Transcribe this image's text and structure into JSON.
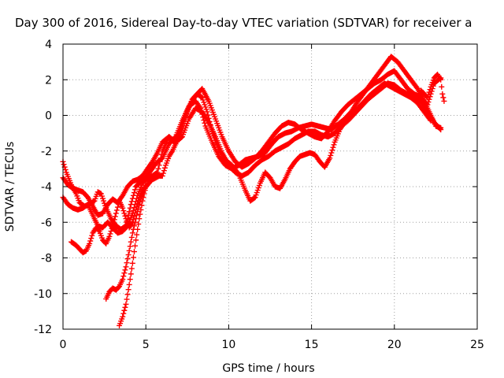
{
  "chart_data": {
    "type": "scatter",
    "title": "Day 300 of 2016, Sidereal Day-to-day VTEC variation (SDTVAR) for receiver a",
    "xlabel": "GPS time / hours",
    "ylabel": "SDTVAR / TECUs",
    "xlim": [
      0,
      25
    ],
    "ylim": [
      -12,
      4
    ],
    "x_ticks": [
      0,
      5,
      10,
      15,
      20,
      25
    ],
    "y_ticks": [
      -12,
      -10,
      -8,
      -6,
      -4,
      -2,
      0,
      2,
      4
    ],
    "grid": true,
    "marker": "plus",
    "colors": {
      "series": "#ff0000",
      "grid": "#a0a0a0",
      "axes": "#000000"
    },
    "series": [
      {
        "x": [
          0.0,
          0.2,
          0.5,
          0.8,
          1.0,
          1.3,
          1.6,
          1.9,
          2.1,
          2.3,
          2.6,
          2.9,
          3.2,
          3.5,
          3.8,
          4.1,
          4.4,
          4.7,
          5.0,
          5.3,
          5.6,
          6.0,
          6.4,
          6.8,
          7.2,
          7.6,
          8.0,
          8.3,
          8.6,
          9.0,
          9.4,
          9.8,
          10.2,
          10.6,
          11.0,
          11.4,
          11.8,
          12.2,
          12.6,
          13.0,
          13.4,
          13.8,
          14.2,
          14.6,
          15.0,
          15.4,
          15.8,
          16.2,
          16.6,
          17.0,
          17.4,
          17.8,
          18.2,
          18.6,
          19.0,
          19.4,
          19.8,
          20.2,
          20.6,
          21.0,
          21.4,
          21.8,
          22.2,
          22.5,
          22.8
        ],
        "y": [
          -2.6,
          -3.2,
          -3.9,
          -4.4,
          -4.9,
          -5.1,
          -5.0,
          -4.8,
          -4.3,
          -4.4,
          -5.2,
          -5.8,
          -6.2,
          -6.4,
          -6.2,
          -5.0,
          -4.0,
          -3.7,
          -3.5,
          -3.1,
          -2.7,
          -2.4,
          -1.6,
          -1.2,
          -0.3,
          0.5,
          0.8,
          0.4,
          -0.6,
          -1.5,
          -2.3,
          -2.8,
          -3.0,
          -2.8,
          -2.5,
          -2.4,
          -2.3,
          -2.1,
          -1.6,
          -1.2,
          -1.0,
          -0.9,
          -0.7,
          -0.6,
          -0.5,
          -0.6,
          -0.7,
          -0.8,
          -0.5,
          -0.2,
          0.2,
          0.8,
          1.3,
          1.8,
          2.3,
          2.8,
          3.3,
          3.0,
          2.5,
          2.0,
          1.5,
          0.8,
          0.0,
          -0.6,
          -0.7
        ]
      },
      {
        "x": [
          0.0,
          0.3,
          0.6,
          0.9,
          1.2,
          1.5,
          1.8,
          2.1,
          2.4,
          2.7,
          3.0,
          3.3,
          3.6,
          3.9,
          4.2,
          4.5,
          4.8,
          5.1,
          5.4,
          5.7,
          6.0,
          6.4,
          6.8,
          7.2,
          7.6,
          8.0,
          8.4,
          8.8,
          9.2,
          9.6,
          10.0,
          10.4,
          10.8,
          11.2,
          11.6,
          12.0,
          12.4,
          12.8,
          13.2,
          13.6,
          14.0,
          14.4,
          14.8,
          15.2,
          15.6,
          16.0,
          16.4,
          16.8,
          17.2,
          17.6,
          18.0,
          18.4,
          18.8,
          19.2,
          19.6,
          20.0,
          20.4,
          20.8,
          21.2,
          21.6,
          22.0,
          22.4,
          22.8
        ],
        "y": [
          -3.5,
          -3.9,
          -4.1,
          -4.2,
          -4.3,
          -4.6,
          -5.1,
          -5.6,
          -5.5,
          -5.0,
          -4.7,
          -4.9,
          -4.5,
          -4.0,
          -3.7,
          -3.6,
          -3.4,
          -3.0,
          -2.6,
          -2.1,
          -1.5,
          -1.2,
          -1.6,
          -0.5,
          0.5,
          1.1,
          1.5,
          0.8,
          -0.2,
          -1.2,
          -2.0,
          -2.6,
          -2.9,
          -2.7,
          -2.4,
          -2.0,
          -1.5,
          -1.0,
          -0.6,
          -0.4,
          -0.5,
          -0.8,
          -1.0,
          -1.2,
          -1.3,
          -0.9,
          -0.3,
          0.2,
          0.6,
          0.9,
          1.2,
          1.5,
          1.8,
          2.0,
          2.3,
          2.5,
          2.0,
          1.5,
          1.2,
          1.0,
          0.6,
          1.8,
          2.1
        ]
      },
      {
        "x": [
          0.0,
          0.3,
          0.6,
          0.9,
          1.2,
          1.5,
          1.8,
          2.1,
          2.4,
          2.7,
          3.0,
          3.3,
          3.6,
          3.9,
          4.2,
          4.5,
          4.8,
          5.1,
          5.4,
          5.7,
          6.0,
          6.4,
          6.8,
          7.2,
          7.6,
          8.0,
          8.4,
          8.8,
          9.2,
          9.6,
          10.0,
          10.4,
          10.8,
          11.2,
          11.6,
          12.0,
          12.4,
          12.8,
          13.2,
          13.6,
          14.0,
          14.4,
          14.8,
          15.2,
          15.6,
          16.0,
          16.4,
          16.8,
          17.2,
          17.6,
          18.0,
          18.4,
          18.8,
          19.2,
          19.6,
          20.0,
          20.4,
          20.8,
          21.2,
          21.6,
          22.0,
          22.4,
          22.8
        ],
        "y": [
          -4.6,
          -5.0,
          -5.2,
          -5.3,
          -5.2,
          -5.0,
          -5.6,
          -6.2,
          -6.3,
          -6.0,
          -6.3,
          -6.6,
          -6.5,
          -6.2,
          -5.5,
          -4.5,
          -3.8,
          -3.5,
          -3.4,
          -3.2,
          -2.0,
          -1.2,
          -1.5,
          -1.2,
          -0.2,
          0.4,
          0.2,
          -0.4,
          -1.2,
          -2.1,
          -2.8,
          -3.2,
          -3.4,
          -3.2,
          -2.8,
          -2.5,
          -2.3,
          -2.0,
          -1.8,
          -1.6,
          -1.3,
          -1.1,
          -0.9,
          -0.9,
          -1.1,
          -1.2,
          -1.0,
          -0.6,
          -0.3,
          0.1,
          0.5,
          0.9,
          1.2,
          1.5,
          1.8,
          1.7,
          1.4,
          1.2,
          1.0,
          0.8,
          0.2,
          -0.4,
          -0.8
        ]
      },
      {
        "x": [
          0.5,
          0.8,
          1.0,
          1.2,
          1.4,
          1.6,
          1.8,
          2.0,
          2.2,
          2.4,
          2.6,
          2.8,
          3.0,
          3.2,
          3.4,
          3.6,
          3.8,
          4.0,
          4.2,
          4.4,
          4.6,
          4.8,
          5.0,
          5.2,
          5.4,
          5.6,
          5.8,
          6.0,
          6.2,
          6.4,
          6.6,
          6.9,
          7.2,
          7.5,
          7.8,
          8.1,
          8.4,
          8.7,
          9.0,
          9.4,
          9.8,
          10.2,
          10.6,
          11.0,
          11.3,
          11.6,
          11.9,
          12.2,
          12.5,
          12.8,
          13.1,
          13.4,
          13.7,
          14.0,
          14.3,
          14.6,
          14.9,
          15.2,
          15.5,
          15.8,
          16.1,
          16.4,
          16.7,
          17.0,
          17.4,
          17.8,
          18.2,
          18.6,
          19.0,
          19.4,
          19.8,
          20.2,
          20.6,
          21.0,
          21.4,
          21.8,
          22.2
        ],
        "y": [
          -7.1,
          -7.3,
          -7.5,
          -7.7,
          -7.6,
          -7.2,
          -6.6,
          -6.3,
          -6.5,
          -7.0,
          -7.2,
          -6.8,
          -6.2,
          -5.5,
          -4.8,
          -5.2,
          -5.8,
          -6.3,
          -6.0,
          -5.3,
          -4.6,
          -4.2,
          -4.0,
          -3.7,
          -3.6,
          -3.5,
          -3.4,
          -3.4,
          -2.8,
          -2.3,
          -2.0,
          -1.4,
          -0.6,
          0.2,
          0.9,
          1.2,
          1.0,
          0.2,
          -0.9,
          -1.9,
          -2.5,
          -2.8,
          -3.3,
          -4.2,
          -4.8,
          -4.6,
          -3.8,
          -3.2,
          -3.5,
          -4.0,
          -4.1,
          -3.6,
          -3.0,
          -2.6,
          -2.3,
          -2.2,
          -2.1,
          -2.2,
          -2.6,
          -2.9,
          -2.4,
          -1.5,
          -0.8,
          -0.4,
          0.1,
          0.4,
          0.8,
          1.2,
          1.5,
          1.8,
          1.6,
          1.4,
          1.2,
          1.0,
          0.7,
          0.2,
          -0.3
        ]
      },
      {
        "x": [
          2.6,
          2.8,
          3.0,
          3.2,
          3.4,
          3.6,
          3.8,
          4.0,
          4.2,
          4.4,
          4.6,
          4.8,
          5.0
        ],
        "y": [
          -10.3,
          -9.9,
          -9.7,
          -9.8,
          -9.6,
          -9.2,
          -8.5,
          -7.6,
          -6.6,
          -5.8,
          -5.0,
          -4.4,
          -4.0
        ]
      },
      {
        "x": [
          3.4,
          3.6,
          3.8,
          4.0,
          4.2,
          4.4,
          4.6,
          4.8,
          5.0,
          5.2
        ],
        "y": [
          -11.8,
          -11.3,
          -10.6,
          -9.5,
          -8.3,
          -7.0,
          -5.8,
          -4.8,
          -4.0,
          -3.8
        ]
      },
      {
        "x": [
          21.6,
          21.8,
          22.0,
          22.2,
          22.4,
          22.6,
          22.8,
          22.9,
          23.0
        ],
        "y": [
          1.4,
          1.2,
          1.0,
          1.6,
          2.1,
          2.3,
          2.0,
          1.2,
          0.8
        ]
      }
    ]
  }
}
